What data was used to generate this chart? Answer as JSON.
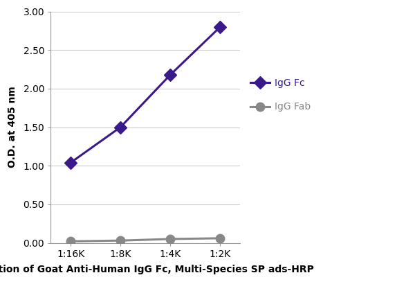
{
  "x_labels": [
    "1:16K",
    "1:8K",
    "1:4K",
    "1:2K"
  ],
  "x_values": [
    1,
    2,
    3,
    4
  ],
  "igg_fc_values": [
    1.04,
    1.5,
    2.18,
    2.8
  ],
  "igg_fab_values": [
    0.02,
    0.03,
    0.05,
    0.06
  ],
  "igg_fc_color": "#3a1a8a",
  "igg_fab_color": "#888888",
  "igg_fc_label": "IgG Fc",
  "igg_fab_label": "IgG Fab",
  "xlabel": "Dilution of Goat Anti-Human IgG Fc, Multi-Species SP ads-HRP",
  "ylabel": "O.D. at 405 nm",
  "ylim": [
    0.0,
    3.0
  ],
  "yticks": [
    0.0,
    0.5,
    1.0,
    1.5,
    2.0,
    2.5,
    3.0
  ],
  "background_color": "#ffffff",
  "grid_color": "#cccccc",
  "linewidth": 2.2,
  "markersize": 9,
  "xlabel_fontsize": 10,
  "ylabel_fontsize": 10,
  "tick_fontsize": 10
}
